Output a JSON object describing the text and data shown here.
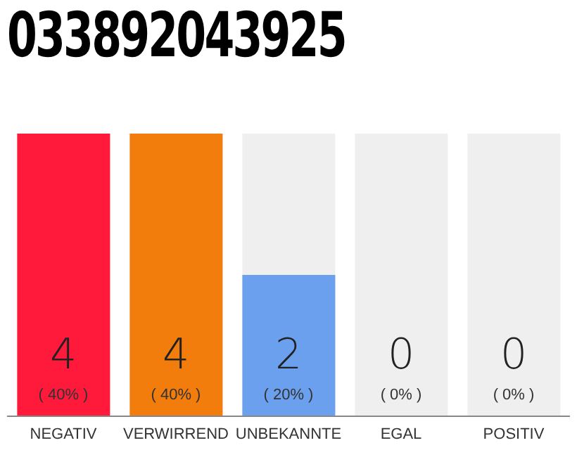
{
  "chart_data": {
    "type": "bar",
    "title": "033892043925",
    "categories": [
      "NEGATIV",
      "VERWIRREND",
      "UNBEKANNTE",
      "EGAL",
      "POSITIV"
    ],
    "values": [
      4,
      4,
      2,
      0,
      0
    ],
    "colors": [
      "#ff1a3c",
      "#f27c0c",
      "#6aa0ee",
      "#6aa0ee",
      "#6aa0ee"
    ],
    "ylim": [
      0,
      4
    ],
    "data_labels": true,
    "annotations": [
      "( 40% )",
      "( 40% )",
      "( 20% )",
      "( 0% )",
      "( 0% )"
    ]
  }
}
